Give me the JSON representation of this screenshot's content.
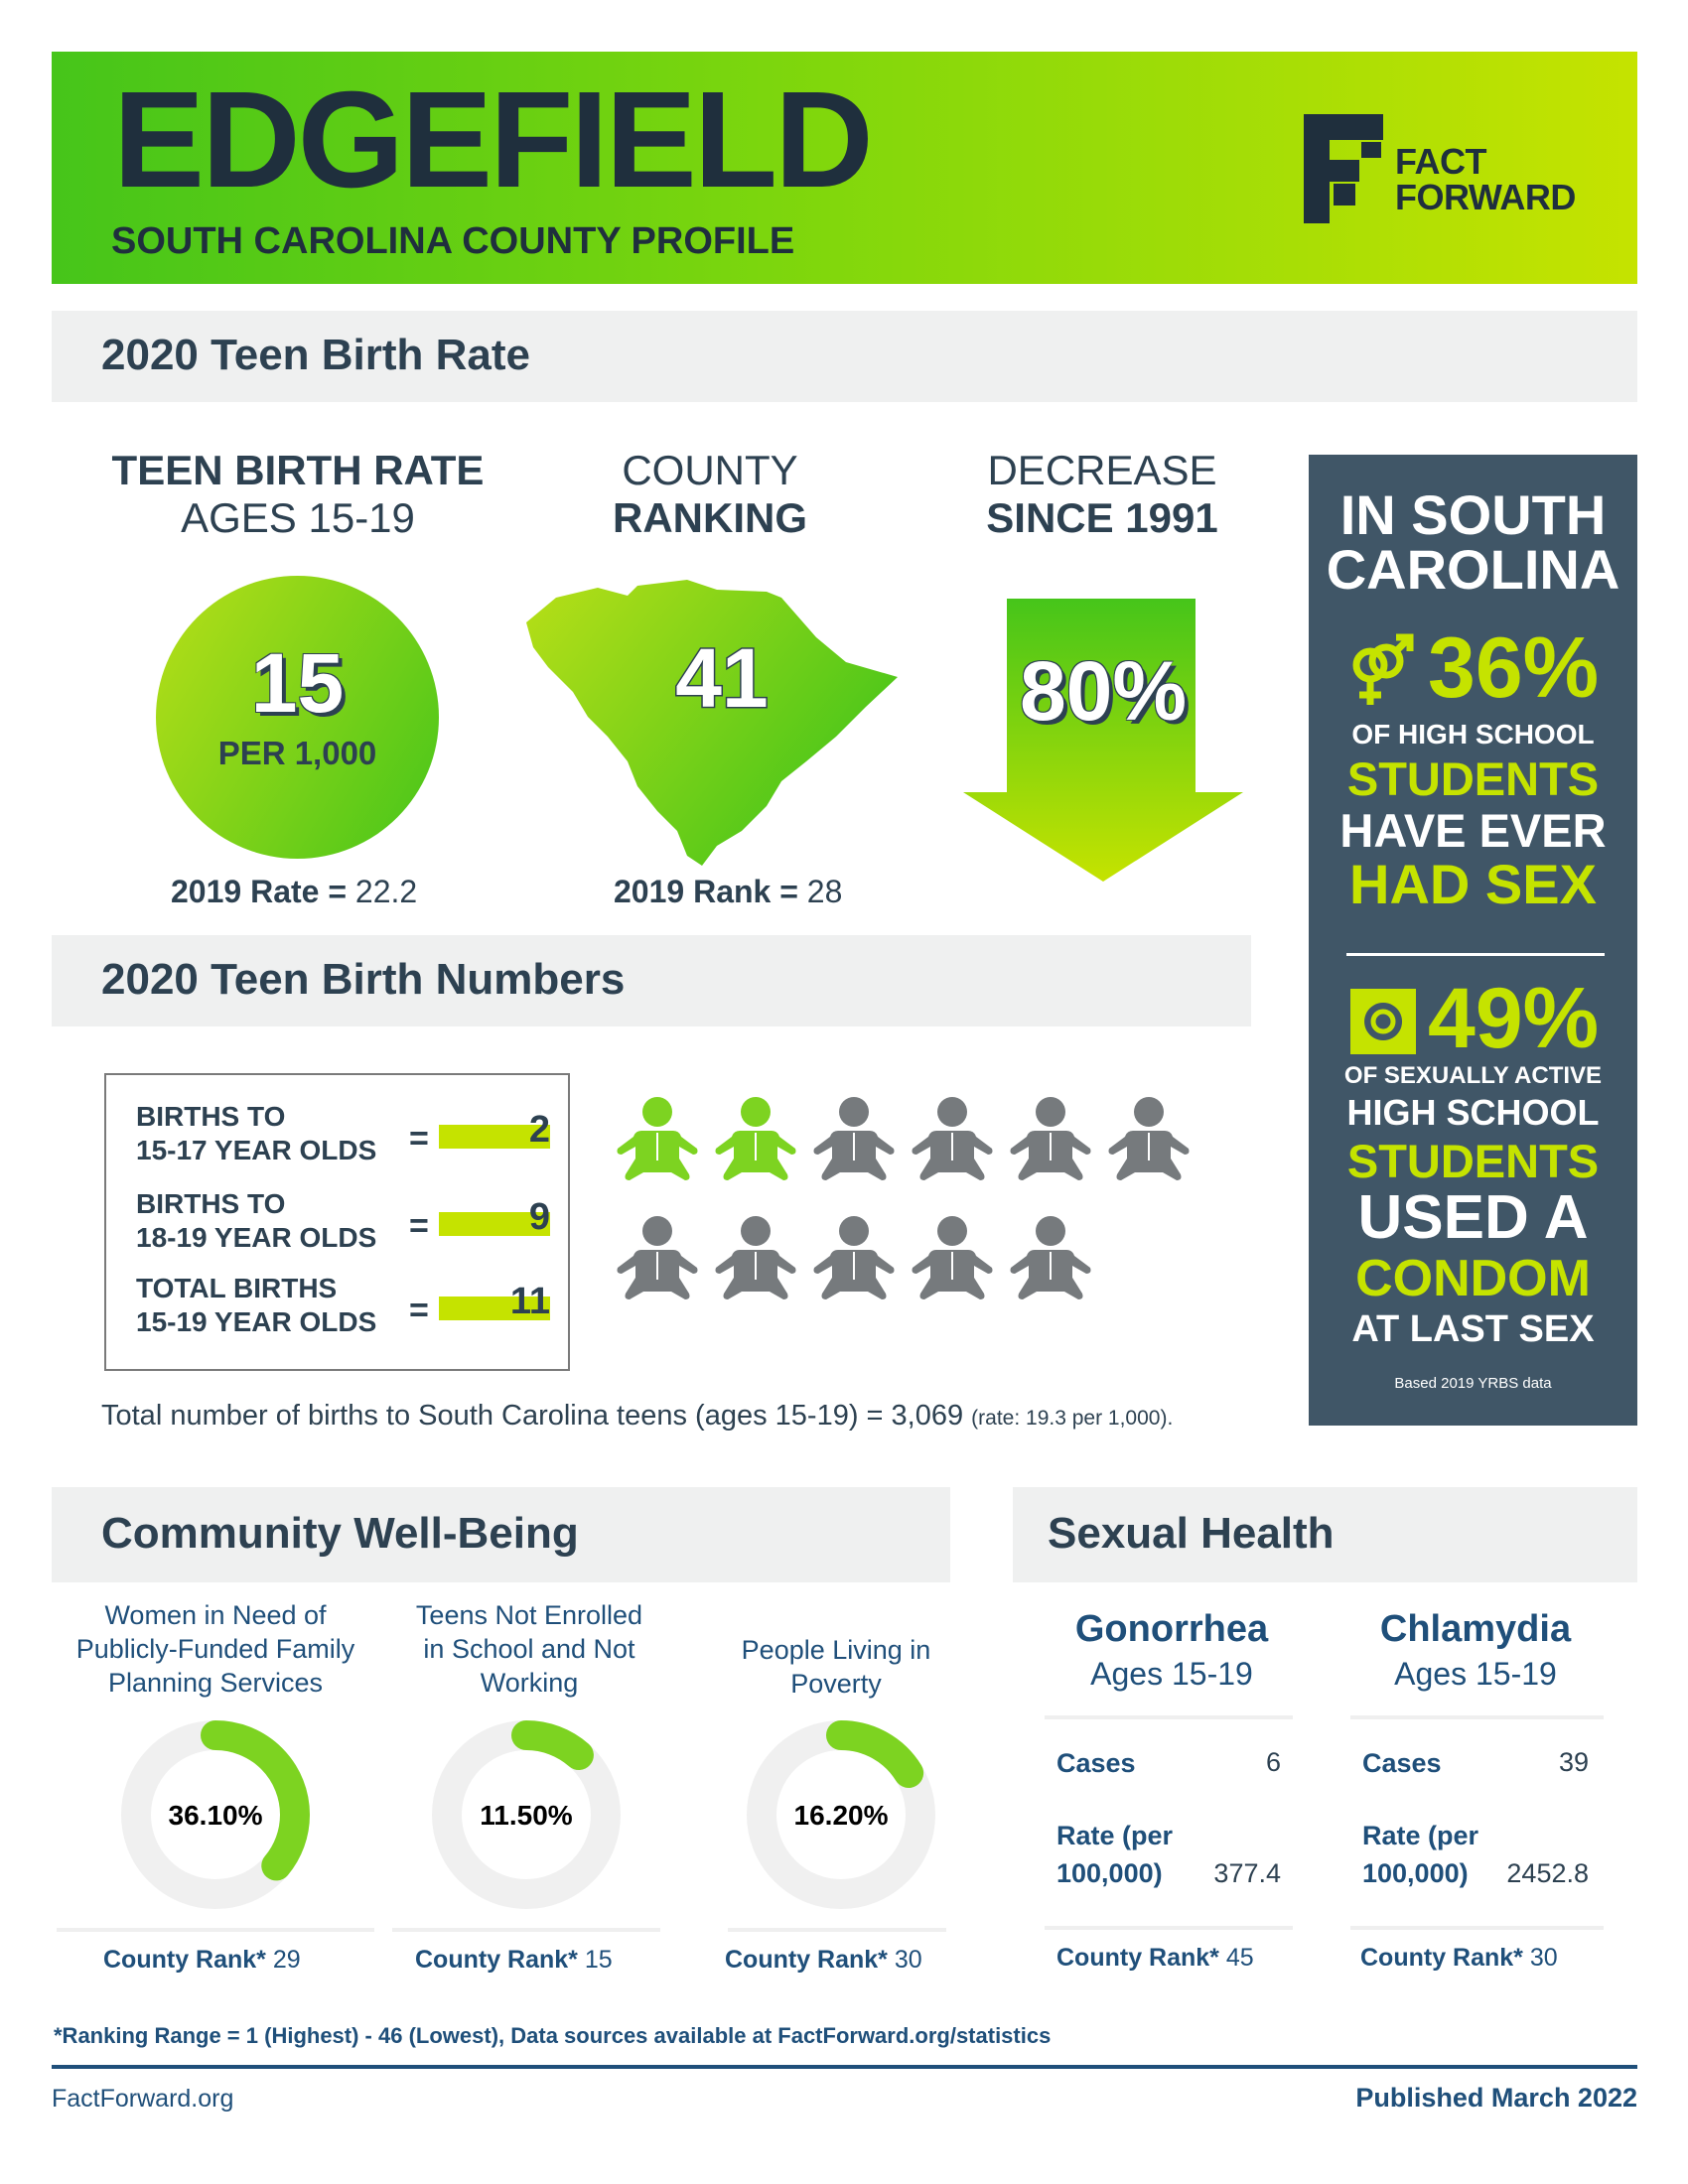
{
  "header": {
    "county": "EDGEFIELD",
    "subtitle": "SOUTH CAROLINA COUNTY PROFILE",
    "logo_line1": "FACT",
    "logo_line2": "FORWARD"
  },
  "teen_birth_rate": {
    "section_title": "2020 Teen Birth Rate",
    "rate": {
      "head_line1": "TEEN BIRTH RATE",
      "head_line2": "AGES 15-19",
      "value": "15",
      "unit": "PER 1,000",
      "prior_label": "2019 Rate =",
      "prior_value": "22.2"
    },
    "ranking": {
      "head_line1": "COUNTY",
      "head_line2": "RANKING",
      "value": "41",
      "prior_label": "2019 Rank =",
      "prior_value": "28"
    },
    "decrease": {
      "head_line1": "DECREASE",
      "head_line2": "SINCE 1991",
      "value": "80%"
    }
  },
  "sc_panel": {
    "title_line1": "IN SOUTH",
    "title_line2": "CAROLINA",
    "stat1_value": "36%",
    "stat1_line1": "OF HIGH SCHOOL",
    "stat1_line2": "STUDENTS",
    "stat1_line3": "HAVE EVER",
    "stat1_line4": "HAD SEX",
    "stat2_value": "49%",
    "stat2_line1": "OF SEXUALLY ACTIVE",
    "stat2_line2": "HIGH SCHOOL",
    "stat2_line3": "STUDENTS",
    "stat2_line4": "USED A",
    "stat2_line5": "CONDOM",
    "stat2_line6": "AT LAST SEX",
    "source": "Based 2019 YRBS data",
    "icon1": "gender-symbols-icon",
    "icon2": "condom-icon"
  },
  "teen_birth_numbers": {
    "section_title": "2020 Teen Birth Numbers",
    "rows": [
      {
        "line1": "BIRTHS TO",
        "line2": "15-17 YEAR OLDS",
        "value": "2"
      },
      {
        "line1": "BIRTHS TO",
        "line2": "18-19 YEAR OLDS",
        "value": "9"
      },
      {
        "line1": "TOTAL BIRTHS",
        "line2": "15-19 YEAR OLDS",
        "value": "11"
      }
    ],
    "equals": "=",
    "babies_highlighted": 2,
    "babies_total": 11,
    "highlight_color": "#7dd321",
    "base_color": "#767a7d",
    "state_total_text": "Total number of births to South Carolina teens (ages 15-19) = 3,069",
    "state_rate_text": "(rate: 19.3 per 1,000)."
  },
  "community": {
    "section_title": "Community Well-Being",
    "items": [
      {
        "title_line1": "Women in Need of",
        "title_line2": "Publicly-Funded Family",
        "title_line3": "Planning Services",
        "value": "36.10%",
        "fraction": 0.361,
        "rank_label": "County Rank*",
        "rank": "29"
      },
      {
        "title_line1": "Teens Not Enrolled",
        "title_line2": "in School and Not",
        "title_line3": "Working",
        "value": "11.50%",
        "fraction": 0.115,
        "rank_label": "County Rank*",
        "rank": "15"
      },
      {
        "title_line1": "People Living in",
        "title_line2": "Poverty",
        "title_line3": "",
        "value": "16.20%",
        "fraction": 0.162,
        "rank_label": "County Rank*",
        "rank": "30"
      }
    ]
  },
  "sexual_health": {
    "section_title": "Sexual Health",
    "items": [
      {
        "title": "Gonorrhea",
        "sub": "Ages 15-19",
        "cases_label": "Cases",
        "cases": "6",
        "rate_label1": "Rate (per",
        "rate_label2": "100,000)",
        "rate": "377.4",
        "rank_label": "County Rank*",
        "rank": "45"
      },
      {
        "title": "Chlamydia",
        "sub": "Ages 15-19",
        "cases_label": "Cases",
        "cases": "39",
        "rate_label1": "Rate (per",
        "rate_label2": "100,000)",
        "rate": "2452.8",
        "rank_label": "County Rank*",
        "rank": "30"
      }
    ]
  },
  "footer": {
    "note": "*Ranking Range = 1 (Highest) - 46 (Lowest), Data sources available at FactForward.org/statistics",
    "site": "FactForward.org",
    "published": "Published March 2022"
  },
  "colors": {
    "navy": "#2d4151",
    "green": "#46c51a",
    "lime": "#c5e300",
    "panel": "#405667",
    "blue_text": "#1f4f7a"
  }
}
